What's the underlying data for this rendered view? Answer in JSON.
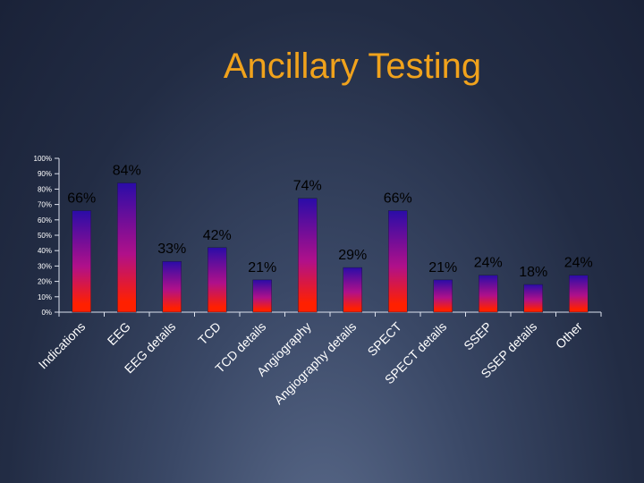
{
  "slide": {
    "title": "Ancillary Testing"
  },
  "colors": {
    "title": "#f0a21c",
    "bar_top": "#2a0ca8",
    "bar_mid": "#b0108a",
    "bar_bottom": "#ff2000"
  },
  "chart_data": {
    "type": "bar",
    "title": "",
    "xlabel": "",
    "ylabel": "",
    "ylim": [
      0,
      100
    ],
    "y_ticks": [
      "0%",
      "10%",
      "20%",
      "30%",
      "40%",
      "50%",
      "60%",
      "70%",
      "80%",
      "90%",
      "100%"
    ],
    "categories": [
      "Indications",
      "EEG",
      "EEG details",
      "TCD",
      "TCD details",
      "Angiography",
      "Angiography details",
      "SPECT",
      "SPECT details",
      "SSEP",
      "SSEP details",
      "Other"
    ],
    "values": [
      66,
      84,
      33,
      42,
      21,
      74,
      29,
      66,
      21,
      24,
      18,
      24
    ],
    "data_labels": [
      "66%",
      "84%",
      "33%",
      "42%",
      "21%",
      "74%",
      "29%",
      "66%",
      "21%",
      "24%",
      "18%",
      "24%"
    ],
    "grid": false,
    "legend": "none"
  }
}
